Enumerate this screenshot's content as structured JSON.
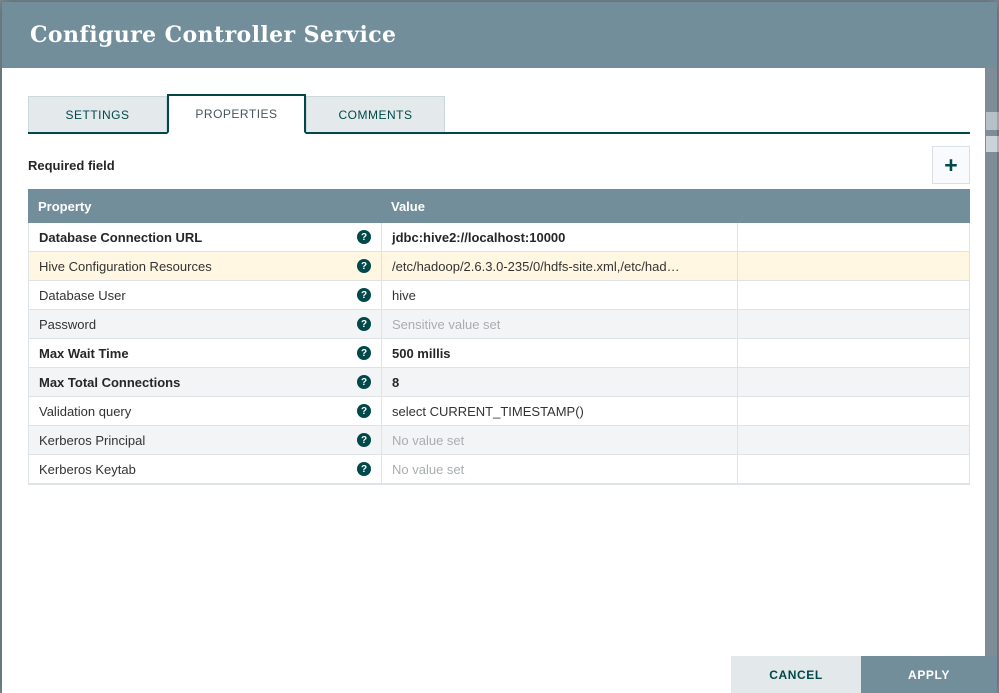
{
  "dialog": {
    "title": "Configure Controller Service",
    "tabs": [
      {
        "label": "SETTINGS",
        "active": false
      },
      {
        "label": "PROPERTIES",
        "active": true
      },
      {
        "label": "COMMENTS",
        "active": false
      }
    ],
    "required_field_label": "Required field",
    "add_property_button": {
      "icon": "plus-icon",
      "glyph": "+"
    },
    "properties_table": {
      "columns": {
        "property": "Property",
        "value": "Value"
      },
      "help_icon": {
        "name": "question-circle-icon",
        "glyph": "?"
      },
      "rows": [
        {
          "property": "Database Connection URL",
          "value": "jdbc:hive2://localhost:10000",
          "emphasis": true,
          "value_unset": false,
          "highlight": "none"
        },
        {
          "property": "Hive Configuration Resources",
          "value": "/etc/hadoop/2.6.3.0-235/0/hdfs-site.xml,/etc/had…",
          "emphasis": false,
          "value_unset": false,
          "highlight": "hover"
        },
        {
          "property": "Database User",
          "value": "hive",
          "emphasis": false,
          "value_unset": false,
          "highlight": "none"
        },
        {
          "property": "Password",
          "value": "Sensitive value set",
          "emphasis": false,
          "value_unset": true,
          "highlight": "alt"
        },
        {
          "property": "Max Wait Time",
          "value": "500 millis",
          "emphasis": true,
          "value_unset": false,
          "highlight": "none"
        },
        {
          "property": "Max Total Connections",
          "value": "8",
          "emphasis": true,
          "value_unset": false,
          "highlight": "alt"
        },
        {
          "property": "Validation query",
          "value": "select CURRENT_TIMESTAMP()",
          "emphasis": false,
          "value_unset": false,
          "highlight": "none"
        },
        {
          "property": "Kerberos Principal",
          "value": "No value set",
          "emphasis": false,
          "value_unset": true,
          "highlight": "alt"
        },
        {
          "property": "Kerberos Keytab",
          "value": "No value set",
          "emphasis": false,
          "value_unset": true,
          "highlight": "none"
        }
      ]
    },
    "footer_buttons": {
      "cancel": "CANCEL",
      "apply": "APPLY"
    },
    "colors": {
      "header_bg": "#728E9B",
      "accent_teal": "#004849",
      "row_hover_bg": "#FFF7E1",
      "row_alt_bg": "#F2F4F5",
      "cancel_bg": "#E3E8EB",
      "apply_bg": "#728E9B"
    }
  }
}
